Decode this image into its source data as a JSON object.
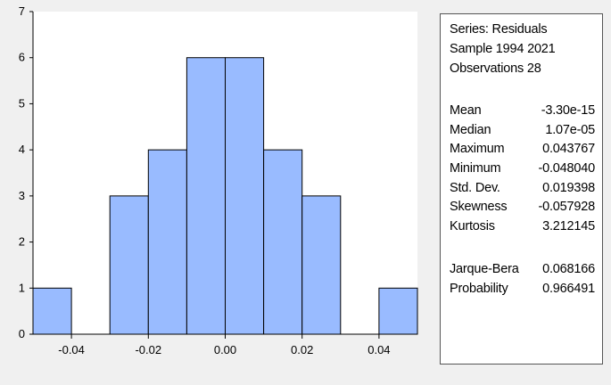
{
  "chart_data": {
    "type": "bar",
    "bins": [
      {
        "from": -0.05,
        "to": -0.04,
        "count": 1
      },
      {
        "from": -0.04,
        "to": -0.03,
        "count": 0
      },
      {
        "from": -0.03,
        "to": -0.02,
        "count": 3
      },
      {
        "from": -0.02,
        "to": -0.01,
        "count": 4
      },
      {
        "from": -0.01,
        "to": 0.0,
        "count": 6
      },
      {
        "from": 0.0,
        "to": 0.01,
        "count": 6
      },
      {
        "from": 0.01,
        "to": 0.02,
        "count": 4
      },
      {
        "from": 0.02,
        "to": 0.03,
        "count": 3
      },
      {
        "from": 0.03,
        "to": 0.04,
        "count": 0
      },
      {
        "from": 0.04,
        "to": 0.05,
        "count": 1
      }
    ],
    "xlim": [
      -0.05,
      0.05
    ],
    "ylim": [
      0,
      7
    ],
    "x_ticks": [
      {
        "value": -0.04,
        "label": "-0.04"
      },
      {
        "value": -0.02,
        "label": "-0.02"
      },
      {
        "value": 0.0,
        "label": "0.00"
      },
      {
        "value": 0.02,
        "label": "0.02"
      },
      {
        "value": 0.04,
        "label": "0.04"
      }
    ],
    "y_ticks": [
      0,
      1,
      2,
      3,
      4,
      5,
      6,
      7
    ],
    "bar_color": "#99bbff",
    "edge_color": "#000000",
    "grid": false
  },
  "stats": {
    "header": [
      "Series: Residuals",
      "Sample 1994 2021",
      "Observations 28"
    ],
    "rows": [
      {
        "label": "Mean",
        "value": "-3.30e-15"
      },
      {
        "label": "Median",
        "value": "1.07e-05"
      },
      {
        "label": "Maximum",
        "value": "0.043767"
      },
      {
        "label": "Minimum",
        "value": "-0.048040"
      },
      {
        "label": "Std. Dev.",
        "value": "0.019398"
      },
      {
        "label": "Skewness",
        "value": "-0.057928"
      },
      {
        "label": "Kurtosis",
        "value": "3.212145"
      }
    ],
    "tests": [
      {
        "label": "Jarque-Bera",
        "value": "0.068166"
      },
      {
        "label": "Probability",
        "value": "0.966491"
      }
    ]
  }
}
